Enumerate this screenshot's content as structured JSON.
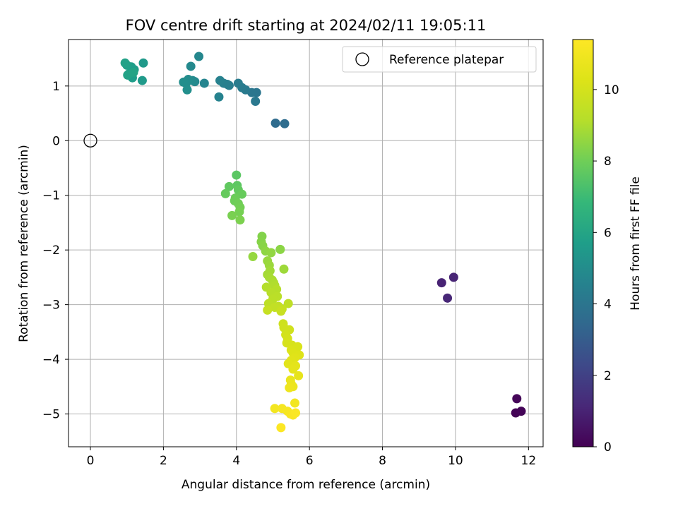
{
  "chart_data": {
    "type": "scatter",
    "title": "FOV centre drift starting at 2024/02/11 19:05:11",
    "xlabel": "Angular distance from reference (arcmin)",
    "ylabel": "Rotation from reference (arcmin)",
    "xlim": [
      -0.6,
      12.4
    ],
    "ylim": [
      -5.6,
      1.85
    ],
    "xticks": [
      0,
      2,
      4,
      6,
      8,
      10,
      12
    ],
    "yticks": [
      1,
      0,
      -1,
      -2,
      -3,
      -4,
      -5
    ],
    "xtick_labels": [
      "0",
      "2",
      "4",
      "6",
      "8",
      "10",
      "12"
    ],
    "ytick_labels": [
      "1",
      "0",
      "−1",
      "−2",
      "−3",
      "−4",
      "−5"
    ],
    "grid": true,
    "legend": {
      "position": "top-right",
      "entries": [
        {
          "label": "Reference platepar",
          "marker": "open-circle"
        }
      ]
    },
    "reference_point": {
      "x": 0,
      "y": 0
    },
    "colorbar": {
      "label": "Hours from first FF file",
      "colormap": "viridis",
      "range": [
        0,
        11.4
      ],
      "ticks": [
        0,
        2,
        4,
        6,
        8,
        10
      ],
      "tick_labels": [
        "0",
        "2",
        "4",
        "6",
        "8",
        "10"
      ]
    },
    "points": [
      {
        "x": 11.65,
        "y": -4.98,
        "c": 0.05
      },
      {
        "x": 11.8,
        "y": -4.95,
        "c": 0.1
      },
      {
        "x": 11.68,
        "y": -4.72,
        "c": 0.15
      },
      {
        "x": 9.62,
        "y": -2.6,
        "c": 1.0
      },
      {
        "x": 9.95,
        "y": -2.5,
        "c": 1.05
      },
      {
        "x": 9.78,
        "y": -2.88,
        "c": 1.1
      },
      {
        "x": 5.07,
        "y": 0.32,
        "c": 3.6
      },
      {
        "x": 5.32,
        "y": 0.31,
        "c": 3.65
      },
      {
        "x": 4.55,
        "y": 0.88,
        "c": 4.0
      },
      {
        "x": 4.42,
        "y": 0.88,
        "c": 4.05
      },
      {
        "x": 4.52,
        "y": 0.72,
        "c": 4.1
      },
      {
        "x": 4.25,
        "y": 0.93,
        "c": 4.2
      },
      {
        "x": 4.15,
        "y": 0.97,
        "c": 4.25
      },
      {
        "x": 4.05,
        "y": 1.05,
        "c": 4.3
      },
      {
        "x": 3.8,
        "y": 1.01,
        "c": 4.35
      },
      {
        "x": 3.75,
        "y": 1.03,
        "c": 4.4
      },
      {
        "x": 3.65,
        "y": 1.05,
        "c": 4.45
      },
      {
        "x": 3.55,
        "y": 1.1,
        "c": 4.5
      },
      {
        "x": 3.52,
        "y": 0.8,
        "c": 4.55
      },
      {
        "x": 3.12,
        "y": 1.05,
        "c": 4.65
      },
      {
        "x": 2.97,
        "y": 1.54,
        "c": 4.75
      },
      {
        "x": 2.86,
        "y": 1.08,
        "c": 4.8
      },
      {
        "x": 2.75,
        "y": 1.36,
        "c": 4.85
      },
      {
        "x": 2.8,
        "y": 1.1,
        "c": 4.9
      },
      {
        "x": 2.68,
        "y": 1.12,
        "c": 4.95
      },
      {
        "x": 2.62,
        "y": 1.05,
        "c": 5.0
      },
      {
        "x": 2.55,
        "y": 1.07,
        "c": 5.05
      },
      {
        "x": 2.65,
        "y": 0.93,
        "c": 5.1
      },
      {
        "x": 1.45,
        "y": 1.42,
        "c": 5.5
      },
      {
        "x": 1.42,
        "y": 1.1,
        "c": 5.55
      },
      {
        "x": 1.2,
        "y": 1.3,
        "c": 5.6
      },
      {
        "x": 1.15,
        "y": 1.15,
        "c": 5.65
      },
      {
        "x": 1.12,
        "y": 1.35,
        "c": 5.7
      },
      {
        "x": 1.05,
        "y": 1.22,
        "c": 5.75
      },
      {
        "x": 1.0,
        "y": 1.38,
        "c": 5.8
      },
      {
        "x": 0.95,
        "y": 1.42,
        "c": 5.85
      },
      {
        "x": 1.02,
        "y": 1.2,
        "c": 5.9
      },
      {
        "x": 1.18,
        "y": 1.25,
        "c": 5.95
      },
      {
        "x": 4.0,
        "y": -0.63,
        "c": 7.6
      },
      {
        "x": 4.02,
        "y": -0.82,
        "c": 7.65
      },
      {
        "x": 3.8,
        "y": -0.84,
        "c": 7.7
      },
      {
        "x": 4.05,
        "y": -0.9,
        "c": 7.75
      },
      {
        "x": 3.7,
        "y": -0.97,
        "c": 7.8
      },
      {
        "x": 4.15,
        "y": -0.98,
        "c": 7.85
      },
      {
        "x": 3.97,
        "y": -1.05,
        "c": 7.9
      },
      {
        "x": 3.95,
        "y": -1.1,
        "c": 7.95
      },
      {
        "x": 4.05,
        "y": -1.15,
        "c": 8.0
      },
      {
        "x": 4.1,
        "y": -1.22,
        "c": 8.05
      },
      {
        "x": 4.08,
        "y": -1.3,
        "c": 8.1
      },
      {
        "x": 3.88,
        "y": -1.37,
        "c": 8.15
      },
      {
        "x": 4.1,
        "y": -1.45,
        "c": 8.2
      },
      {
        "x": 4.7,
        "y": -1.75,
        "c": 8.3
      },
      {
        "x": 4.68,
        "y": -1.85,
        "c": 8.35
      },
      {
        "x": 4.72,
        "y": -1.92,
        "c": 8.4
      },
      {
        "x": 5.2,
        "y": -1.99,
        "c": 8.45
      },
      {
        "x": 4.8,
        "y": -2.02,
        "c": 8.5
      },
      {
        "x": 4.95,
        "y": -2.05,
        "c": 8.55
      },
      {
        "x": 4.45,
        "y": -2.12,
        "c": 8.6
      },
      {
        "x": 4.85,
        "y": -2.2,
        "c": 8.65
      },
      {
        "x": 4.9,
        "y": -2.28,
        "c": 8.7
      },
      {
        "x": 5.3,
        "y": -2.35,
        "c": 8.75
      },
      {
        "x": 4.92,
        "y": -2.38,
        "c": 8.8
      },
      {
        "x": 4.85,
        "y": -2.45,
        "c": 8.85
      },
      {
        "x": 4.9,
        "y": -2.5,
        "c": 8.9
      },
      {
        "x": 4.98,
        "y": -2.55,
        "c": 8.95
      },
      {
        "x": 5.02,
        "y": -2.6,
        "c": 9.0
      },
      {
        "x": 5.05,
        "y": -2.65,
        "c": 9.05
      },
      {
        "x": 4.82,
        "y": -2.68,
        "c": 9.1
      },
      {
        "x": 5.1,
        "y": -2.72,
        "c": 9.15
      },
      {
        "x": 4.95,
        "y": -2.78,
        "c": 9.2
      },
      {
        "x": 5.12,
        "y": -2.85,
        "c": 9.25
      },
      {
        "x": 5.0,
        "y": -2.9,
        "c": 9.3
      },
      {
        "x": 4.88,
        "y": -2.98,
        "c": 9.35
      },
      {
        "x": 5.42,
        "y": -2.98,
        "c": 9.4
      },
      {
        "x": 5.15,
        "y": -3.03,
        "c": 9.45
      },
      {
        "x": 5.05,
        "y": -3.05,
        "c": 9.5
      },
      {
        "x": 5.25,
        "y": -3.08,
        "c": 9.55
      },
      {
        "x": 4.85,
        "y": -3.1,
        "c": 9.6
      },
      {
        "x": 5.22,
        "y": -3.12,
        "c": 9.65
      },
      {
        "x": 5.28,
        "y": -3.35,
        "c": 9.8
      },
      {
        "x": 5.3,
        "y": -3.42,
        "c": 9.85
      },
      {
        "x": 5.45,
        "y": -3.46,
        "c": 9.9
      },
      {
        "x": 5.35,
        "y": -3.55,
        "c": 9.95
      },
      {
        "x": 5.4,
        "y": -3.62,
        "c": 10.0
      },
      {
        "x": 5.38,
        "y": -3.7,
        "c": 10.05
      },
      {
        "x": 5.52,
        "y": -3.74,
        "c": 10.1
      },
      {
        "x": 5.68,
        "y": -3.77,
        "c": 10.15
      },
      {
        "x": 5.5,
        "y": -3.83,
        "c": 10.2
      },
      {
        "x": 5.55,
        "y": -3.88,
        "c": 10.25
      },
      {
        "x": 5.72,
        "y": -3.92,
        "c": 10.3
      },
      {
        "x": 5.6,
        "y": -3.97,
        "c": 10.35
      },
      {
        "x": 5.5,
        "y": -4.02,
        "c": 10.4
      },
      {
        "x": 5.42,
        "y": -4.08,
        "c": 10.45
      },
      {
        "x": 5.62,
        "y": -4.12,
        "c": 10.5
      },
      {
        "x": 5.55,
        "y": -4.18,
        "c": 10.55
      },
      {
        "x": 5.7,
        "y": -4.3,
        "c": 10.6
      },
      {
        "x": 5.48,
        "y": -4.38,
        "c": 10.7
      },
      {
        "x": 5.5,
        "y": -4.45,
        "c": 10.75
      },
      {
        "x": 5.55,
        "y": -4.5,
        "c": 10.8
      },
      {
        "x": 5.45,
        "y": -4.52,
        "c": 10.85
      },
      {
        "x": 5.6,
        "y": -4.8,
        "c": 11.0
      },
      {
        "x": 5.05,
        "y": -4.9,
        "c": 11.05
      },
      {
        "x": 5.25,
        "y": -4.9,
        "c": 11.1
      },
      {
        "x": 5.4,
        "y": -4.95,
        "c": 11.15
      },
      {
        "x": 5.48,
        "y": -5.0,
        "c": 11.2
      },
      {
        "x": 5.55,
        "y": -5.02,
        "c": 11.25
      },
      {
        "x": 5.62,
        "y": -4.98,
        "c": 11.3
      },
      {
        "x": 5.22,
        "y": -5.25,
        "c": 11.35
      }
    ]
  }
}
